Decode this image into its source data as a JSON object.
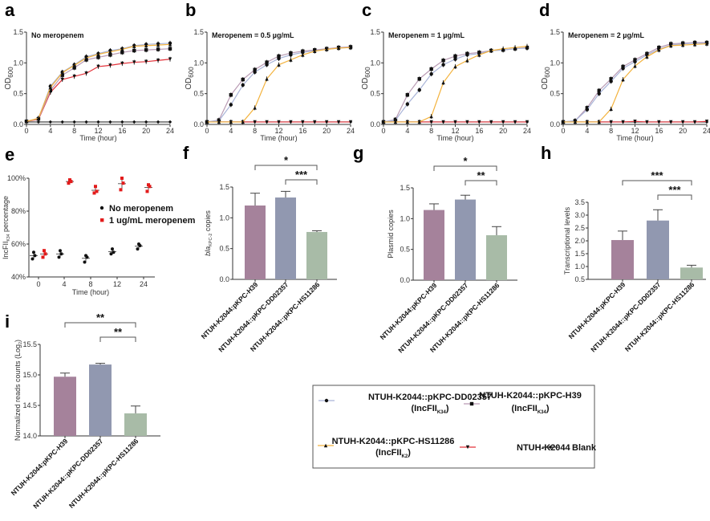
{
  "colors": {
    "DD02357": "#a9b4d8",
    "H39": "#b99bb4",
    "HS11286": "#f3b23c",
    "K2044": "#e3333b",
    "Blank": "#333333",
    "bar_H39": "#a5829b",
    "bar_DD02357": "#9198b0",
    "bar_HS11286": "#a8bba7",
    "e_no": "#111111",
    "e_mero": "#e31b1b"
  },
  "legend": {
    "items": [
      {
        "key": "DD02357",
        "label": "NTUH-K2044::pKPC-DD02357",
        "sub_prefix": "(IncFII",
        "sub": "K34",
        "sub_suffix": ")",
        "marker": "circle"
      },
      {
        "key": "H39",
        "label": "NTUH-K2044::pKPC-H39",
        "sub_prefix": "(IncFII",
        "sub": "K34",
        "sub_suffix": ")",
        "marker": "square"
      },
      {
        "key": "HS11286",
        "label": "NTUH-K2044::pKPC-HS11286",
        "sub_prefix": "(IncFII",
        "sub": "K2",
        "sub_suffix": ")",
        "marker": "triangle"
      },
      {
        "key": "K2044",
        "label": "NTUH-K2044",
        "marker": "triangle-down"
      },
      {
        "key": "Blank",
        "label": "Blank",
        "marker": "diamond"
      }
    ]
  },
  "chart_data": [
    {
      "panel": "a",
      "type": "line",
      "title": "No meropenem",
      "xlabel": "Time (hour)",
      "ylabel": "OD600",
      "ylim": [
        0,
        1.5
      ],
      "xlim": [
        0,
        24
      ],
      "xticks": [
        0,
        4,
        8,
        12,
        16,
        20,
        24
      ],
      "yticks": [
        0.0,
        0.5,
        1.0,
        1.5
      ],
      "x": [
        0,
        2,
        4,
        6,
        8,
        10,
        12,
        14,
        16,
        18,
        20,
        22,
        24
      ],
      "series": [
        {
          "name": "DD02357",
          "values": [
            0.05,
            0.1,
            0.62,
            0.85,
            0.97,
            1.1,
            1.15,
            1.2,
            1.23,
            1.28,
            1.3,
            1.31,
            1.32
          ]
        },
        {
          "name": "H39",
          "values": [
            0.05,
            0.09,
            0.55,
            0.8,
            0.92,
            1.05,
            1.09,
            1.13,
            1.17,
            1.2,
            1.21,
            1.22,
            1.23
          ]
        },
        {
          "name": "HS11286",
          "values": [
            0.05,
            0.1,
            0.6,
            0.84,
            0.96,
            1.08,
            1.14,
            1.18,
            1.22,
            1.27,
            1.28,
            1.29,
            1.3
          ]
        },
        {
          "name": "K2044",
          "values": [
            0.05,
            0.08,
            0.52,
            0.73,
            0.78,
            0.83,
            0.94,
            0.96,
            0.99,
            1.01,
            1.02,
            1.04,
            1.06
          ]
        },
        {
          "name": "Blank",
          "values": [
            0.04,
            0.04,
            0.04,
            0.04,
            0.04,
            0.04,
            0.04,
            0.04,
            0.04,
            0.04,
            0.04,
            0.04,
            0.04
          ]
        }
      ]
    },
    {
      "panel": "b",
      "type": "line",
      "title": "Meropenem = 0.5 µg/mL",
      "xlabel": "Time (hour)",
      "ylabel": "OD600",
      "ylim": [
        0,
        1.5
      ],
      "xlim": [
        0,
        24
      ],
      "xticks": [
        0,
        4,
        8,
        12,
        16,
        20,
        24
      ],
      "yticks": [
        0.0,
        0.5,
        1.0,
        1.5
      ],
      "x": [
        0,
        2,
        4,
        6,
        8,
        10,
        12,
        14,
        16,
        18,
        20,
        22,
        24
      ],
      "series": [
        {
          "name": "DD02357",
          "values": [
            0.04,
            0.06,
            0.32,
            0.64,
            0.85,
            0.97,
            1.07,
            1.13,
            1.17,
            1.2,
            1.22,
            1.24,
            1.25
          ]
        },
        {
          "name": "H39",
          "values": [
            0.04,
            0.07,
            0.48,
            0.73,
            0.89,
            1.01,
            1.11,
            1.16,
            1.19,
            1.21,
            1.23,
            1.25,
            1.26
          ]
        },
        {
          "name": "HS11286",
          "values": [
            0.04,
            0.04,
            0.04,
            0.04,
            0.27,
            0.74,
            0.97,
            1.05,
            1.13,
            1.19,
            1.22,
            1.24,
            1.25
          ]
        },
        {
          "name": "K2044",
          "values": [
            0.04,
            0.04,
            0.04,
            0.04,
            0.04,
            0.04,
            0.04,
            0.04,
            0.04,
            0.04,
            0.04,
            0.04,
            0.04
          ]
        },
        {
          "name": "Blank",
          "values": [
            0.04,
            0.04,
            0.04,
            0.04,
            0.04,
            0.04,
            0.04,
            0.04,
            0.04,
            0.04,
            0.04,
            0.04,
            0.04
          ]
        }
      ]
    },
    {
      "panel": "c",
      "type": "line",
      "title": "Meropenem = 1 µg/mL",
      "xlabel": "Time (hour)",
      "ylabel": "OD600",
      "ylim": [
        0,
        1.5
      ],
      "xlim": [
        0,
        24
      ],
      "xticks": [
        0,
        4,
        8,
        12,
        16,
        20,
        24
      ],
      "yticks": [
        0.0,
        0.5,
        1.0,
        1.5
      ],
      "x": [
        0,
        2,
        4,
        6,
        8,
        10,
        12,
        14,
        16,
        18,
        20,
        22,
        24
      ],
      "series": [
        {
          "name": "DD02357",
          "values": [
            0.04,
            0.07,
            0.33,
            0.56,
            0.82,
            0.97,
            1.06,
            1.13,
            1.15,
            1.2,
            1.21,
            1.23,
            1.24
          ]
        },
        {
          "name": "H39",
          "values": [
            0.04,
            0.08,
            0.48,
            0.74,
            0.9,
            1.04,
            1.11,
            1.15,
            1.17,
            1.2,
            1.21,
            1.23,
            1.25
          ]
        },
        {
          "name": "HS11286",
          "values": [
            0.04,
            0.04,
            0.04,
            0.04,
            0.13,
            0.68,
            0.94,
            1.04,
            1.13,
            1.2,
            1.23,
            1.25,
            1.27
          ]
        },
        {
          "name": "K2044",
          "values": [
            0.04,
            0.04,
            0.04,
            0.04,
            0.04,
            0.04,
            0.04,
            0.04,
            0.04,
            0.04,
            0.04,
            0.04,
            0.04
          ]
        },
        {
          "name": "Blank",
          "values": [
            0.04,
            0.04,
            0.04,
            0.04,
            0.04,
            0.04,
            0.04,
            0.04,
            0.04,
            0.04,
            0.04,
            0.04,
            0.04
          ]
        }
      ]
    },
    {
      "panel": "d",
      "type": "line",
      "title": "Meropenem = 2 µg/mL",
      "xlabel": "Time (hour)",
      "ylabel": "OD600",
      "ylim": [
        0,
        1.5
      ],
      "xlim": [
        0,
        24
      ],
      "xticks": [
        0,
        4,
        8,
        12,
        16,
        20,
        24
      ],
      "yticks": [
        0.0,
        0.5,
        1.0,
        1.5
      ],
      "x": [
        0,
        2,
        4,
        6,
        8,
        10,
        12,
        14,
        16,
        18,
        20,
        22,
        24
      ],
      "series": [
        {
          "name": "DD02357",
          "values": [
            0.04,
            0.06,
            0.24,
            0.5,
            0.7,
            0.91,
            1.02,
            1.13,
            1.22,
            1.29,
            1.31,
            1.32,
            1.32
          ]
        },
        {
          "name": "H39",
          "values": [
            0.04,
            0.06,
            0.27,
            0.55,
            0.74,
            0.94,
            1.05,
            1.15,
            1.25,
            1.31,
            1.32,
            1.33,
            1.33
          ]
        },
        {
          "name": "HS11286",
          "values": [
            0.04,
            0.04,
            0.04,
            0.04,
            0.25,
            0.73,
            0.95,
            1.1,
            1.21,
            1.28,
            1.29,
            1.3,
            1.31
          ]
        },
        {
          "name": "K2044",
          "values": [
            0.04,
            0.04,
            0.04,
            0.04,
            0.04,
            0.04,
            0.05,
            0.04,
            0.04,
            0.04,
            0.04,
            0.04,
            0.05
          ]
        },
        {
          "name": "Blank",
          "values": [
            0.04,
            0.04,
            0.04,
            0.04,
            0.04,
            0.04,
            0.04,
            0.04,
            0.04,
            0.04,
            0.04,
            0.04,
            0.04
          ]
        }
      ]
    },
    {
      "panel": "e",
      "type": "scatter",
      "xlabel": "Time (hour)",
      "ylabel": "IncFII_K34 percentage",
      "ylabel_main": "IncFII",
      "ylabel_sub": "K34",
      "ylabel_rest": " percentage",
      "ylim": [
        40,
        100
      ],
      "yticks": [
        "40%",
        "60%",
        "80%",
        "100%"
      ],
      "ytick_values": [
        40,
        60,
        80,
        100
      ],
      "categories": [
        "0",
        "4",
        "8",
        "12",
        "24"
      ],
      "legend": [
        "No meropenem",
        "1 ug/mL meropenem"
      ],
      "series": [
        {
          "name": "No meropenem",
          "groups": [
            [
              55,
              53,
              51
            ],
            [
              56,
              54,
              52
            ],
            [
              53,
              52,
              49
            ],
            [
              57,
              55,
              54
            ],
            [
              60,
              59,
              57
            ]
          ]
        },
        {
          "name": "1 ug/mL meropenem",
          "groups": [
            [
              56,
              54,
              52
            ],
            [
              99,
              98,
              97
            ],
            [
              95,
              92,
              91
            ],
            [
              100,
              97,
              93
            ],
            [
              96,
              95,
              92
            ]
          ]
        }
      ]
    },
    {
      "panel": "f",
      "type": "bar",
      "ylabel": "bla KPC-2 copies",
      "ylabel_main": "bla",
      "ylabel_sub": "KPC-2",
      "ylabel_rest": " copies",
      "ylim": [
        0,
        1.5
      ],
      "yticks": [
        0.0,
        0.5,
        1.0,
        1.5
      ],
      "categories": [
        "NTUH-K2044:pKPC-H39",
        "NTUH-K2044::pKPC-DD02357",
        "NTUH-K2044::pKPC-HS11286"
      ],
      "values": [
        1.2,
        1.33,
        0.77
      ],
      "errors": [
        0.2,
        0.1,
        0.02
      ],
      "significance": [
        {
          "from": 0,
          "to": 2,
          "label": "*"
        },
        {
          "from": 1,
          "to": 2,
          "label": "***"
        }
      ]
    },
    {
      "panel": "g",
      "type": "bar",
      "ylabel": "Plasmid copies",
      "ylim": [
        0,
        1.5
      ],
      "yticks": [
        0.0,
        0.5,
        1.0,
        1.5
      ],
      "categories": [
        "NTUH-K2044:pKPC-H39",
        "NTUH-K2044::pKPC-DD02357",
        "NTUH-K2044::pKPC-HS11286"
      ],
      "values": [
        1.14,
        1.31,
        0.73
      ],
      "errors": [
        0.1,
        0.07,
        0.14
      ],
      "significance": [
        {
          "from": 0,
          "to": 2,
          "label": "*"
        },
        {
          "from": 1,
          "to": 2,
          "label": "**"
        }
      ]
    },
    {
      "panel": "h",
      "type": "bar",
      "ylabel": "Transcriptional levels",
      "ylim": [
        0.5,
        3.5
      ],
      "yticks": [
        0.5,
        1.0,
        1.5,
        2.0,
        2.5,
        3.0,
        3.5
      ],
      "categories": [
        "NTUH-K2044:pKPC-H39",
        "NTUH-K2044::pKPC-DD02357",
        "NTUH-K2044::pKPC-HS11286"
      ],
      "values": [
        2.03,
        2.79,
        0.96
      ],
      "errors": [
        0.35,
        0.42,
        0.09
      ],
      "significance": [
        {
          "from": 0,
          "to": 2,
          "label": "***"
        },
        {
          "from": 1,
          "to": 2,
          "label": "***"
        }
      ]
    },
    {
      "panel": "i",
      "type": "bar",
      "ylabel": "Normalized reads counts (Log2)",
      "ylabel_main": "Normalized reads counts (Log",
      "ylabel_sub": "2",
      "ylabel_rest": ")",
      "ylim": [
        14.0,
        15.5
      ],
      "yticks": [
        14.0,
        14.5,
        15.0,
        15.5
      ],
      "categories": [
        "NTUH-K2044:pKPC-H39",
        "NTUH-K2044::pKPC-DD02357",
        "NTUH-K2044::pKPC-HS11286"
      ],
      "values": [
        14.97,
        15.17,
        14.37
      ],
      "errors": [
        0.06,
        0.02,
        0.12
      ],
      "significance": [
        {
          "from": 0,
          "to": 2,
          "label": "**"
        },
        {
          "from": 1,
          "to": 2,
          "label": "**"
        }
      ]
    }
  ]
}
